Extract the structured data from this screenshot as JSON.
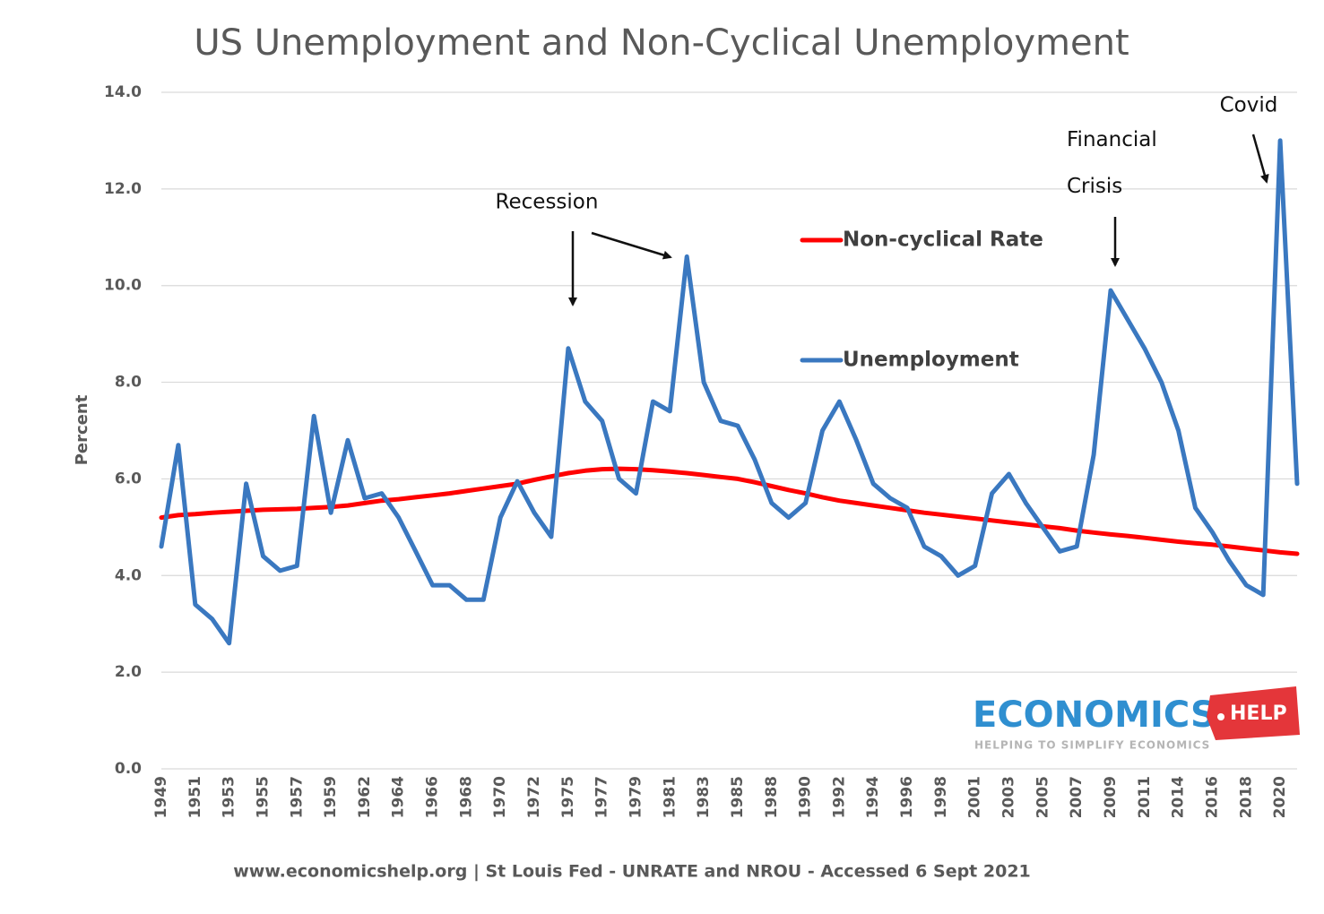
{
  "chart_data": {
    "type": "line",
    "title": "US Unemployment and Non-Cyclical Unemployment",
    "y_axis_label": "Percent",
    "source": "www.economicshelp.org | St Louis Fed - UNRATE and NROU - Accessed 6 Sept 2021",
    "annotations": [
      "Recession",
      "Financial Crisis",
      "Covid"
    ],
    "logo": {
      "name": "ECONOMICS",
      "badge": "HELP",
      "tagline": "HELPING TO SIMPLIFY ECONOMICS"
    },
    "categories": [
      "1949",
      null,
      "1951",
      null,
      "1953",
      null,
      "1955",
      null,
      "1957",
      null,
      "1959",
      null,
      "1962",
      null,
      "1964",
      null,
      "1966",
      null,
      "1968",
      null,
      "1970",
      null,
      "1972",
      null,
      "1975",
      null,
      "1977",
      null,
      "1979",
      null,
      "1981",
      null,
      "1983",
      null,
      "1985",
      null,
      "1988",
      null,
      "1990",
      null,
      "1992",
      null,
      "1994",
      null,
      "1996",
      null,
      "1998",
      null,
      "2001",
      null,
      "2003",
      null,
      "2005",
      null,
      "2007",
      null,
      "2009",
      null,
      "2011",
      null,
      "2014",
      null,
      "2016",
      null,
      "2018",
      null,
      "2020",
      null
    ],
    "series": [
      {
        "name": "Non-cyclical Rate",
        "color": "#ff0000",
        "values": [
          5.2,
          5.25,
          5.27,
          5.3,
          5.32,
          5.34,
          5.36,
          5.37,
          5.38,
          5.4,
          5.42,
          5.45,
          5.5,
          5.55,
          5.58,
          5.62,
          5.66,
          5.7,
          5.75,
          5.8,
          5.85,
          5.9,
          5.98,
          6.05,
          6.12,
          6.17,
          6.2,
          6.21,
          6.2,
          6.18,
          6.15,
          6.12,
          6.08,
          6.04,
          6.0,
          5.93,
          5.85,
          5.77,
          5.7,
          5.62,
          5.55,
          5.5,
          5.45,
          5.4,
          5.35,
          5.3,
          5.26,
          5.22,
          5.18,
          5.14,
          5.1,
          5.06,
          5.02,
          4.98,
          4.93,
          4.89,
          4.85,
          4.82,
          4.78,
          4.74,
          4.7,
          4.67,
          4.64,
          4.6,
          4.56,
          4.52,
          4.48,
          4.45
        ]
      },
      {
        "name": "Unemployment",
        "color": "#3a78c0",
        "values": [
          4.6,
          6.7,
          3.4,
          3.1,
          2.6,
          5.9,
          4.4,
          4.1,
          4.2,
          7.3,
          5.3,
          6.8,
          5.6,
          5.7,
          5.2,
          4.5,
          3.8,
          3.8,
          3.5,
          3.5,
          5.2,
          5.95,
          5.3,
          4.8,
          8.7,
          7.6,
          7.2,
          6.0,
          5.7,
          7.6,
          7.4,
          10.6,
          8.0,
          7.2,
          7.1,
          6.4,
          5.5,
          5.2,
          5.5,
          7.0,
          7.6,
          6.8,
          5.9,
          5.6,
          5.4,
          4.6,
          4.4,
          4.0,
          4.2,
          5.7,
          6.1,
          5.5,
          5.0,
          4.5,
          4.6,
          6.5,
          9.9,
          9.3,
          8.7,
          8.0,
          7.0,
          5.4,
          4.9,
          4.3,
          3.8,
          3.6,
          13.0,
          5.9
        ]
      }
    ],
    "ylim": [
      0,
      14
    ],
    "yticks": [
      {
        "value": 0,
        "label": "0.0"
      },
      {
        "value": 2,
        "label": "2.0"
      },
      {
        "value": 4,
        "label": "4.0"
      },
      {
        "value": 6,
        "label": "6.0"
      },
      {
        "value": 8,
        "label": "8.0"
      },
      {
        "value": 10,
        "label": "10.0"
      },
      {
        "value": 12,
        "label": "12.0"
      },
      {
        "value": 14,
        "label": "14.0"
      }
    ],
    "grid": true
  }
}
